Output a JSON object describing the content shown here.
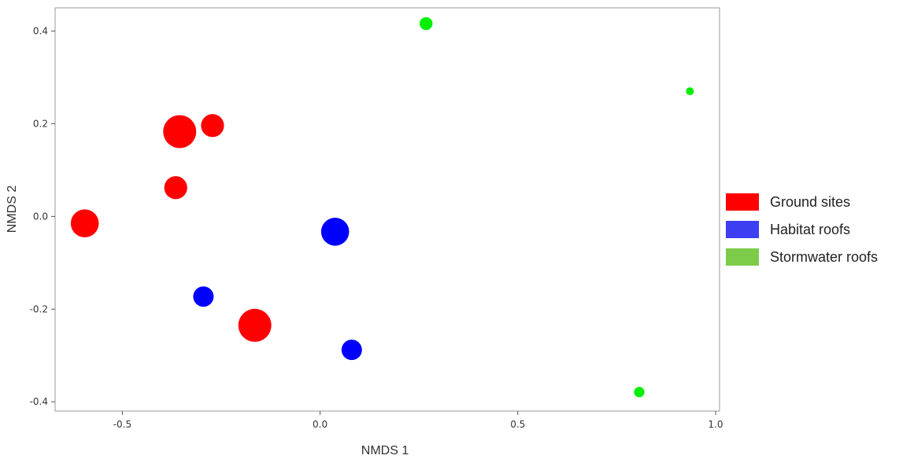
{
  "chart_data": {
    "type": "scatter",
    "xlabel": "NMDS 1",
    "ylabel": "NMDS 2",
    "xlim": [
      -0.67,
      1.01
    ],
    "ylim": [
      -0.42,
      0.45
    ],
    "x_ticks": [
      -0.5,
      0.0,
      0.5,
      1.0
    ],
    "x_tick_labels": [
      "-0.5",
      "0.0",
      "0.5",
      "1.0"
    ],
    "y_ticks": [
      -0.4,
      -0.2,
      0.0,
      0.2,
      0.4
    ],
    "y_tick_labels": [
      "-0.4",
      "-0.2",
      "0.0",
      "0.2",
      "0.4"
    ],
    "grid": false,
    "legend_position": "right",
    "series": [
      {
        "name": "Ground sites",
        "color": "#ff0000",
        "legend_color": "#ff0000",
        "points": [
          {
            "x": -0.355,
            "y": 0.183,
            "size": 5
          },
          {
            "x": -0.272,
            "y": 0.196,
            "size": 3
          },
          {
            "x": -0.365,
            "y": 0.062,
            "size": 3
          },
          {
            "x": -0.595,
            "y": -0.015,
            "size": 4
          },
          {
            "x": -0.165,
            "y": -0.235,
            "size": 5
          }
        ]
      },
      {
        "name": "Habitat roofs",
        "color": "#0000ff",
        "legend_color": "#3d3df2",
        "points": [
          {
            "x": 0.038,
            "y": -0.033,
            "size": 4
          },
          {
            "x": -0.295,
            "y": -0.173,
            "size": 2.5
          },
          {
            "x": 0.08,
            "y": -0.288,
            "size": 2.5
          }
        ]
      },
      {
        "name": "Stormwater roofs",
        "color": "#00ee00",
        "legend_color": "#7ccc4a",
        "points": [
          {
            "x": 0.268,
            "y": 0.416,
            "size": 1
          },
          {
            "x": 0.935,
            "y": 0.27,
            "size": 0
          },
          {
            "x": 0.807,
            "y": -0.379,
            "size": 0.5
          }
        ]
      }
    ]
  }
}
